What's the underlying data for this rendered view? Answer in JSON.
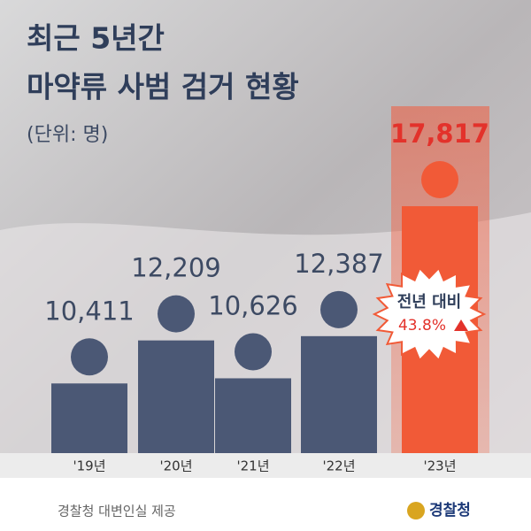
{
  "chart_data": {
    "type": "bar",
    "title": [
      "최근 5년간",
      "마약류 사범 검거 현황"
    ],
    "subtitle": "(단위: 명)",
    "categories": [
      "'19년",
      "'20년",
      "'21년",
      "'22년",
      "'23년"
    ],
    "values": [
      10411,
      12209,
      10626,
      12387,
      17817
    ],
    "value_labels": [
      "10,411",
      "12,209",
      "10,626",
      "12,387",
      "17,817"
    ],
    "colors": [
      "#4b5875",
      "#4b5875",
      "#4b5875",
      "#4b5875",
      "#f15a37"
    ],
    "ylim": [
      7500,
      19000
    ],
    "annotation": {
      "text": "전년 대비",
      "change": "43.8%"
    },
    "footer": "경찰청 대변인실 제공",
    "logo": "경찰청"
  }
}
